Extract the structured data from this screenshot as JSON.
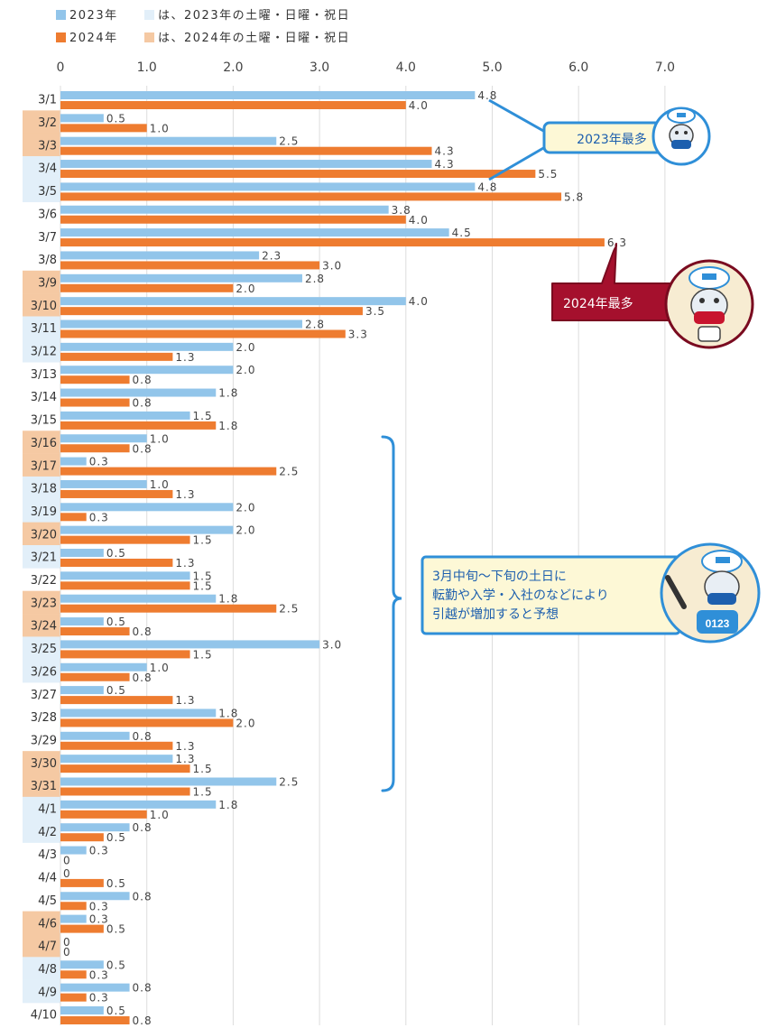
{
  "legend": {
    "items": [
      {
        "label": "2023年",
        "color": "#92c5ea"
      },
      {
        "label": "は、2023年の土曜・日曜・祝日",
        "color": "#e2eff9"
      },
      {
        "label": "2024年",
        "color": "#ee7c30"
      },
      {
        "label": "は、2024年の土曜・日曜・祝日",
        "color": "#f5c9a3"
      }
    ]
  },
  "colors": {
    "series_2023": "#92c5ea",
    "series_2024": "#ee7c30",
    "holiday_2023": "#e2eff9",
    "holiday_2024": "#f5c9a3",
    "grid": "#dddddd",
    "callout_blue": "#2f8fd8",
    "callout_red": "#a5102d",
    "callout_fill": "#fdf8d6"
  },
  "callouts": {
    "max_2023": "2023年最多",
    "max_2024": "2024年最多",
    "note_line1": "3月中旬〜下旬の土日に",
    "note_line2": "転勤や入学・入社のなどにより",
    "note_line3": "引越が増加すると予想"
  },
  "chart_data": {
    "type": "bar",
    "orientation": "horizontal",
    "xlim": [
      0,
      7
    ],
    "xticks": [
      "0",
      "1.0",
      "2.0",
      "3.0",
      "4.0",
      "5.0",
      "6.0",
      "7.0"
    ],
    "grid": true,
    "legend_position": "top-left",
    "categories": [
      "3/1",
      "3/2",
      "3/3",
      "3/4",
      "3/5",
      "3/6",
      "3/7",
      "3/8",
      "3/9",
      "3/10",
      "3/11",
      "3/12",
      "3/13",
      "3/14",
      "3/15",
      "3/16",
      "3/17",
      "3/18",
      "3/19",
      "3/20",
      "3/21",
      "3/22",
      "3/23",
      "3/24",
      "3/25",
      "3/26",
      "3/27",
      "3/28",
      "3/29",
      "3/30",
      "3/31",
      "4/1",
      "4/2",
      "4/3",
      "4/4",
      "4/5",
      "4/6",
      "4/7",
      "4/8",
      "4/9",
      "4/10"
    ],
    "series": [
      {
        "name": "2023年",
        "values": [
          4.8,
          0.5,
          2.5,
          4.3,
          4.8,
          3.8,
          4.5,
          2.3,
          2.8,
          4.0,
          2.8,
          2.0,
          2.0,
          1.8,
          1.5,
          1.0,
          0.3,
          1.0,
          2.0,
          2.0,
          0.5,
          1.5,
          1.8,
          0.5,
          3.0,
          1.0,
          0.5,
          1.8,
          0.8,
          1.3,
          2.5,
          1.8,
          0.8,
          0.3,
          0,
          0.8,
          0.3,
          0,
          0.5,
          0.8,
          0.5
        ],
        "labels": [
          "4.8",
          "0.5",
          "2.5",
          "4.3",
          "4.8",
          "3.8",
          "4.5",
          "2.3",
          "2.8",
          "4.0",
          "2.8",
          "2.0",
          "2.0",
          "1.8",
          "1.5",
          "1.0",
          "0.3",
          "1.0",
          "2.0",
          "2.0",
          "0.5",
          "1.5",
          "1.8",
          "0.5",
          "3.0",
          "1.0",
          "0.5",
          "1.8",
          "0.8",
          "1.3",
          "2.5",
          "1.8",
          "0.8",
          "0.3",
          "0",
          "0.8",
          "0.3",
          "0",
          "0.5",
          "0.8",
          "0.5"
        ]
      },
      {
        "name": "2024年",
        "values": [
          4.0,
          1.0,
          4.3,
          5.5,
          5.8,
          4.0,
          6.3,
          3.0,
          2.0,
          3.5,
          3.3,
          1.3,
          0.8,
          0.8,
          1.8,
          0.8,
          2.5,
          1.3,
          0.3,
          1.5,
          1.3,
          1.5,
          2.5,
          0.8,
          1.5,
          0.8,
          1.3,
          2.0,
          1.3,
          1.5,
          1.5,
          1.0,
          0.5,
          0,
          0.5,
          0.3,
          0.5,
          0,
          0.3,
          0.3,
          0.8
        ],
        "labels": [
          "4.0",
          "1.0",
          "4.3",
          "5.5",
          "5.8",
          "4.0",
          "6.3",
          "3.0",
          "2.0",
          "3.5",
          "3.3",
          "1.3",
          "0.8",
          "0.8",
          "1.8",
          "0.8",
          "2.5",
          "1.3",
          "0.3",
          "1.5",
          "1.3",
          "1.5",
          "2.5",
          "0.8",
          "1.5",
          "0.8",
          "1.3",
          "2.0",
          "1.3",
          "1.5",
          "1.5",
          "1.0",
          "0.5",
          "0",
          "0.5",
          "0.3",
          "0.5",
          "0",
          "0.3",
          "0.3",
          "0.8"
        ]
      }
    ],
    "holidays_2023": [
      "3/4",
      "3/5",
      "3/11",
      "3/12",
      "3/18",
      "3/19",
      "3/21",
      "3/25",
      "3/26",
      "4/1",
      "4/2",
      "4/8",
      "4/9"
    ],
    "holidays_2024": [
      "3/2",
      "3/3",
      "3/9",
      "3/10",
      "3/16",
      "3/17",
      "3/20",
      "3/23",
      "3/24",
      "3/30",
      "3/31",
      "4/6",
      "4/7"
    ]
  }
}
